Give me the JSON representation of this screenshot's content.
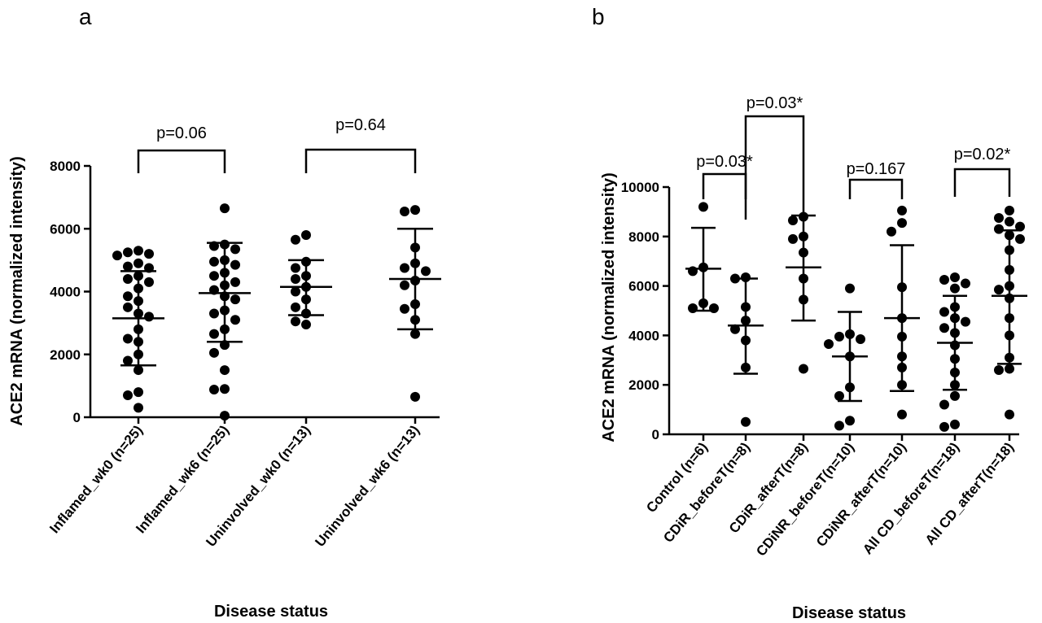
{
  "chart_data": [
    {
      "type": "scatter",
      "panel": "a",
      "xlabel": "Disease status",
      "ylabel": "ACE2  mRNA (normalized intensity)",
      "ylim": [
        0,
        8000
      ],
      "yticks": [
        "0",
        "2000",
        "4000",
        "6000",
        "8000"
      ],
      "categories": [
        "Inflamed_wk0 (n=25)",
        "Inflamed_wk6 (n=25)",
        "Uninvolved_wk0 (n=13)",
        "Uninvolved_wk6 (n=13)"
      ],
      "groups": [
        {
          "mean": 3150,
          "sd_low": 1650,
          "sd_high": 4650,
          "points": [
            5300,
            5200,
            5250,
            5150,
            4900,
            4800,
            4750,
            4500,
            4400,
            4300,
            4100,
            3850,
            3700,
            3500,
            3300,
            3200,
            2800,
            2500,
            2400,
            2000,
            1800,
            1500,
            800,
            700,
            300
          ]
        },
        {
          "mean": 3950,
          "sd_low": 2400,
          "sd_high": 5550,
          "points": [
            6650,
            5500,
            5450,
            5350,
            5000,
            4950,
            4850,
            4600,
            4500,
            4300,
            4200,
            4050,
            3850,
            3750,
            3400,
            3300,
            3100,
            2800,
            2650,
            2300,
            2050,
            1500,
            900,
            880,
            50
          ]
        },
        {
          "mean": 4150,
          "sd_low": 3250,
          "sd_high": 5000,
          "points": [
            5800,
            5650,
            4950,
            4750,
            4500,
            4400,
            4150,
            4000,
            3750,
            3500,
            3300,
            3050,
            2950
          ]
        },
        {
          "mean": 4400,
          "sd_low": 2800,
          "sd_high": 6000,
          "points": [
            6600,
            6550,
            5400,
            4900,
            4750,
            4650,
            4350,
            4200,
            3600,
            3450,
            3100,
            2650,
            650
          ]
        }
      ],
      "comparisons": [
        {
          "from": 0,
          "to": 1,
          "label": "p=0.06"
        },
        {
          "from": 2,
          "to": 3,
          "label": "p=0.64"
        }
      ]
    },
    {
      "type": "scatter",
      "panel": "b",
      "xlabel": "Disease status",
      "ylabel": "ACE2  mRNA (normalized intensity)",
      "ylim": [
        0,
        10000
      ],
      "yticks": [
        "0",
        "2000",
        "4000",
        "6000",
        "8000",
        "10000"
      ],
      "categories": [
        "Control (n=6)",
        "CDiR_beforeT(n=8)",
        "CDiR_afterT(n=8)",
        "CDiNR_beforeT(n=10)",
        "CDiNR_afterT(n=10)",
        "All CD_beforeT(n=18)",
        "All CD_afterT(n=18)"
      ],
      "groups": [
        {
          "mean": 6700,
          "sd_low": 5000,
          "sd_high": 8350,
          "points": [
            9200,
            6750,
            6600,
            5300,
            5100,
            5100
          ]
        },
        {
          "mean": 4400,
          "sd_low": 2450,
          "sd_high": 6300,
          "points": [
            6350,
            6300,
            5150,
            4600,
            4250,
            3800,
            2700,
            500
          ]
        },
        {
          "mean": 6750,
          "sd_low": 4600,
          "sd_high": 8850,
          "points": [
            8800,
            8650,
            8000,
            7900,
            7350,
            6300,
            5450,
            2650
          ]
        },
        {
          "mean": 3150,
          "sd_low": 1350,
          "sd_high": 4950,
          "points": [
            5900,
            4050,
            3950,
            3850,
            3650,
            3150,
            1900,
            1550,
            550,
            350
          ]
        },
        {
          "mean": 4700,
          "sd_low": 1750,
          "sd_high": 7650,
          "points": [
            9050,
            8550,
            8200,
            5950,
            4700,
            3950,
            3150,
            2700,
            2000,
            800
          ]
        },
        {
          "mean": 3700,
          "sd_low": 1800,
          "sd_high": 5600,
          "points": [
            6350,
            6250,
            6100,
            5900,
            5150,
            4950,
            4700,
            4550,
            4300,
            4100,
            3600,
            3050,
            2500,
            2000,
            1550,
            1200,
            400,
            300
          ]
        },
        {
          "mean": 5600,
          "sd_low": 2850,
          "sd_high": 8250,
          "points": [
            9050,
            8750,
            8600,
            8400,
            8300,
            8050,
            7900,
            7450,
            6650,
            6000,
            5850,
            5500,
            4700,
            4000,
            3100,
            2650,
            2600,
            800
          ]
        }
      ],
      "comparisons": [
        {
          "from": 0,
          "to": 1,
          "label": "p=0.03*",
          "label_pos": "center"
        },
        {
          "from": 1,
          "to": 2,
          "label": "p=0.03*",
          "label_pos": "center"
        },
        {
          "from": 3,
          "to": 4,
          "label": "p=0.167",
          "label_pos": "center"
        },
        {
          "from": 5,
          "to": 6,
          "label": "p=0.02*",
          "label_pos": "center"
        }
      ]
    }
  ],
  "panels": {
    "a": {
      "label": "a"
    },
    "b": {
      "label": "b"
    }
  }
}
